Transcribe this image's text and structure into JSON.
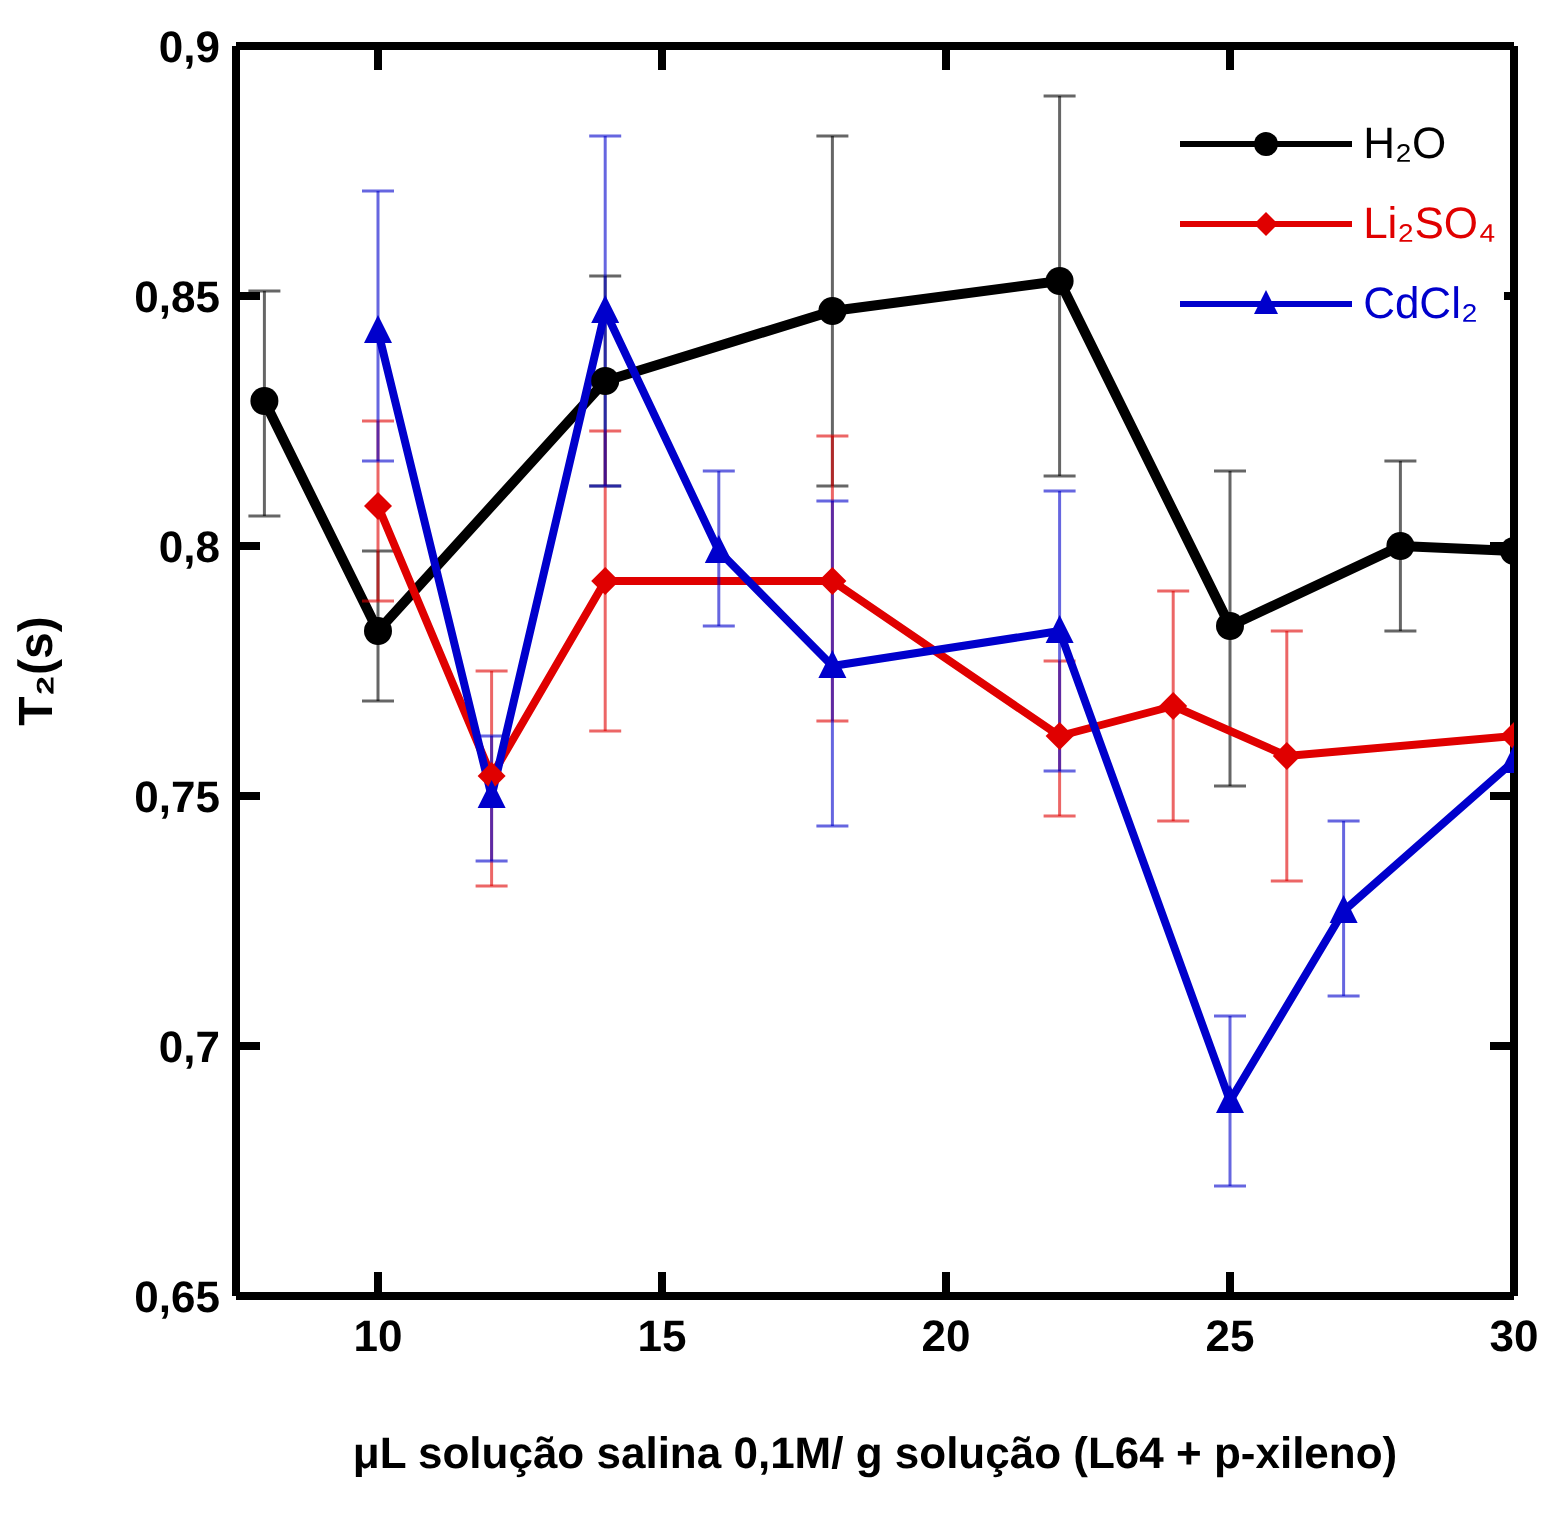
{
  "chart_data": {
    "type": "line",
    "xlabel": "μL solução salina 0,1M/ g solução (L64 + p-xileno)",
    "ylabel": "T₂(s)",
    "xlim": [
      7.5,
      30
    ],
    "xticks": [
      10,
      15,
      20,
      25,
      30
    ],
    "ylim": [
      0.65,
      0.9
    ],
    "yticks": [
      {
        "value": 0.65,
        "label": "0,65"
      },
      {
        "value": 0.7,
        "label": "0,7"
      },
      {
        "value": 0.75,
        "label": "0,75"
      },
      {
        "value": 0.8,
        "label": "0,8"
      },
      {
        "value": 0.85,
        "label": "0,85"
      },
      {
        "value": 0.9,
        "label": "0,9"
      }
    ],
    "grid": false,
    "legend": "top right",
    "line_style": "solid",
    "series": [
      {
        "name": "H₂O",
        "color": "#000000",
        "marker": "circle",
        "x": [
          8,
          10,
          14,
          18,
          22,
          25,
          28,
          30
        ],
        "values": [
          0.829,
          0.783,
          0.833,
          0.847,
          0.853,
          0.784,
          0.8,
          0.799
        ],
        "errors": [
          [
            0.806,
            0.851
          ],
          [
            0.769,
            0.799
          ],
          [
            0.812,
            0.854
          ],
          [
            0.812,
            0.882
          ],
          [
            0.814,
            0.89
          ],
          [
            0.752,
            0.815
          ],
          [
            0.783,
            0.817
          ],
          null
        ]
      },
      {
        "name": "Li₂SO₄",
        "color": "#e00000",
        "marker": "diamond",
        "x": [
          10,
          12,
          14,
          18,
          22,
          24,
          26,
          30
        ],
        "values": [
          0.808,
          0.754,
          0.793,
          0.793,
          0.762,
          0.768,
          0.758,
          0.762
        ],
        "errors": [
          [
            0.789,
            0.825
          ],
          [
            0.732,
            0.775
          ],
          [
            0.763,
            0.823
          ],
          [
            0.765,
            0.822
          ],
          [
            0.746,
            0.777
          ],
          [
            0.745,
            0.791
          ],
          [
            0.733,
            0.783
          ],
          null
        ]
      },
      {
        "name": "CdCl₂",
        "color": "#0000cc",
        "marker": "triangle",
        "x": [
          10,
          12,
          14,
          16,
          18,
          22,
          25,
          27,
          30
        ],
        "values": [
          0.843,
          0.75,
          0.847,
          0.799,
          0.776,
          0.783,
          0.689,
          0.727,
          0.757
        ],
        "errors": [
          [
            0.817,
            0.871
          ],
          [
            0.737,
            0.762
          ],
          [
            0.812,
            0.882
          ],
          [
            0.784,
            0.815
          ],
          [
            0.744,
            0.809
          ],
          [
            0.755,
            0.811
          ],
          [
            0.672,
            0.706
          ],
          [
            0.71,
            0.745
          ],
          null
        ]
      }
    ]
  }
}
